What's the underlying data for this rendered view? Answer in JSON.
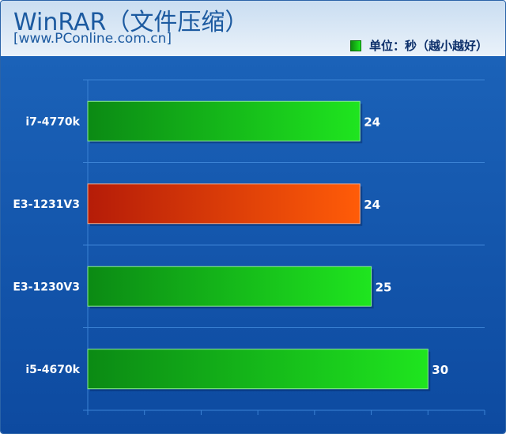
{
  "chart_data": {
    "type": "bar",
    "orientation": "horizontal",
    "title": "WinRAR（文件压缩）",
    "subtitle": "[www.PConline.com.cn]",
    "categories": [
      "i7-4770k",
      "E3-1231V3",
      "E3-1230V3",
      "i5-4670k"
    ],
    "series": [
      {
        "name": "单位：秒（越小越好）",
        "values": [
          24,
          24,
          25,
          30
        ]
      }
    ],
    "highlight_index": 1,
    "xlim": [
      0,
      35
    ],
    "grid": true,
    "legend": "top-right",
    "colors": {
      "bar": "#11b811",
      "bar_highlight": "#e0460c",
      "plot_background": "#1458b0",
      "grid": "#3b82d4",
      "text": "#ffffff"
    }
  }
}
